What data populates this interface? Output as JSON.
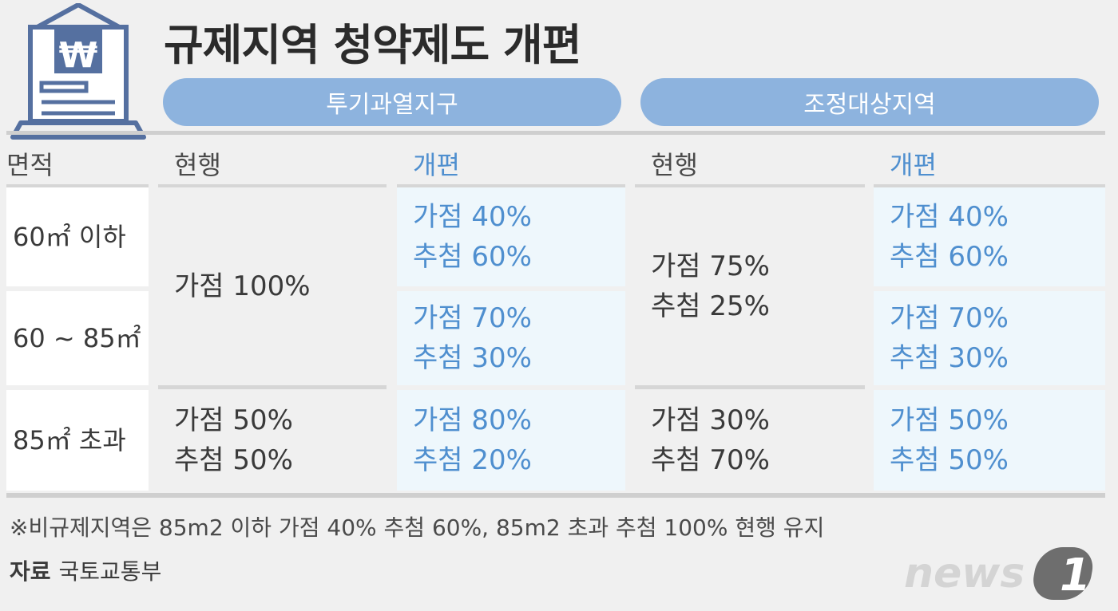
{
  "title": "규제지역 청약제도 개편",
  "groups": {
    "a": "투기과열지구",
    "b": "조정대상지역"
  },
  "headers": {
    "area": "면적",
    "a_current": "현행",
    "a_reform": "개편",
    "b_current": "현행",
    "b_reform": "개편"
  },
  "rows": {
    "r1": {
      "area": "60㎡ 이하"
    },
    "r2": {
      "area": "60 ~ 85㎡"
    },
    "r3": {
      "area": "85㎡ 초과"
    }
  },
  "cells": {
    "a_current_r12": [
      "가점 100%"
    ],
    "a_current_r3": [
      "가점 50%",
      "추첨 50%"
    ],
    "a_reform_r1": [
      "가점 40%",
      "추첨 60%"
    ],
    "a_reform_r2": [
      "가점 70%",
      "추첨 30%"
    ],
    "a_reform_r3": [
      "가점 80%",
      "추첨 20%"
    ],
    "b_current_r12": [
      "가점 75%",
      "추첨 25%"
    ],
    "b_current_r3": [
      "가점 30%",
      "추첨 70%"
    ],
    "b_reform_r1": [
      "가점 40%",
      "추첨 60%"
    ],
    "b_reform_r2": [
      "가점 70%",
      "추첨 30%"
    ],
    "b_reform_r3": [
      "가점 50%",
      "추첨 50%"
    ]
  },
  "note": "※비규제지역은 85m2 이하 가점 40% 추첨 60%, 85m2 초과 추첨 100% 현행 유지",
  "source": {
    "label": "자료",
    "value": "국토교통부"
  },
  "logo": {
    "text": "news",
    "numeral": "1"
  },
  "icon": {
    "name": "house-laptop-icon",
    "symbol": "₩"
  },
  "colors": {
    "pill": "#8db3de",
    "blue_text": "#4f8fcf",
    "light_cell": "#eef7fc",
    "background": "#f0f0f0"
  }
}
